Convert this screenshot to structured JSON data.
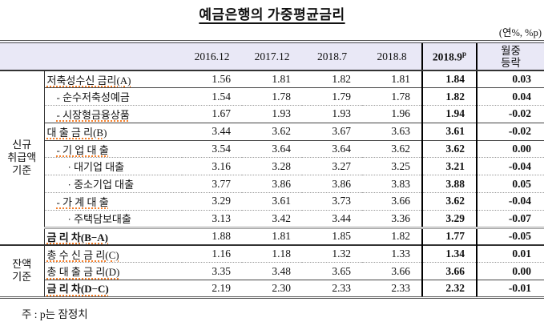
{
  "title": "예금은행의 가중평균금리",
  "unit_note": "(연%, %p)",
  "footnote": "주 : p는 잠정치",
  "table": {
    "columns": [
      "2016.12",
      "2017.12",
      "2018.7",
      "2018.8"
    ],
    "col_current": {
      "text": "2018.9",
      "sup": "p"
    },
    "col_change_lines": [
      "월중",
      "등락"
    ],
    "groups": [
      {
        "label_lines": [
          "신규",
          "취급액",
          "기준"
        ],
        "rows": [
          {
            "label": "저축성수신 금리(A)",
            "indent": 0,
            "bold": false,
            "squiggle": true,
            "sep": "none",
            "values": [
              "1.56",
              "1.81",
              "1.82",
              "1.81",
              "1.84",
              "0.03"
            ]
          },
          {
            "label": "- 순수저축성예금",
            "indent": 1,
            "bold": false,
            "squiggle": false,
            "sep": "solid",
            "values": [
              "1.54",
              "1.78",
              "1.79",
              "1.78",
              "1.82",
              "0.04"
            ]
          },
          {
            "label": "- 시장형금융상품",
            "indent": 1,
            "bold": false,
            "squiggle": true,
            "sep": "dotted",
            "values": [
              "1.67",
              "1.93",
              "1.93",
              "1.96",
              "1.94",
              "-0.02"
            ]
          },
          {
            "label": "대 출 금 리(B)",
            "indent": 0,
            "bold": false,
            "squiggle": true,
            "sep": "solid",
            "values": [
              "3.44",
              "3.62",
              "3.67",
              "3.63",
              "3.61",
              "-0.02"
            ]
          },
          {
            "label": "- 기 업 대 출",
            "indent": 1,
            "bold": false,
            "squiggle": true,
            "sep": "solid",
            "values": [
              "3.54",
              "3.64",
              "3.64",
              "3.62",
              "3.62",
              "0.00"
            ]
          },
          {
            "label": "· 대기업 대출",
            "indent": 2,
            "bold": false,
            "squiggle": false,
            "sep": "dotted",
            "values": [
              "3.16",
              "3.28",
              "3.27",
              "3.25",
              "3.21",
              "-0.04"
            ]
          },
          {
            "label": "· 중소기업 대출",
            "indent": 2,
            "bold": false,
            "squiggle": false,
            "sep": "dotted",
            "values": [
              "3.77",
              "3.86",
              "3.86",
              "3.83",
              "3.88",
              "0.05"
            ]
          },
          {
            "label": "- 가 계 대 출",
            "indent": 1,
            "bold": false,
            "squiggle": true,
            "sep": "dotted",
            "values": [
              "3.29",
              "3.61",
              "3.73",
              "3.66",
              "3.62",
              "-0.04"
            ]
          },
          {
            "label": "· 주택담보대출",
            "indent": 2,
            "bold": false,
            "squiggle": false,
            "sep": "dotted",
            "values": [
              "3.13",
              "3.42",
              "3.44",
              "3.36",
              "3.29",
              "-0.07"
            ]
          },
          {
            "label": "금 리 차(B−A)",
            "indent": 0,
            "bold": true,
            "squiggle": true,
            "sep": "double",
            "values": [
              "1.88",
              "1.81",
              "1.85",
              "1.82",
              "1.77",
              "-0.05"
            ]
          }
        ]
      },
      {
        "label_lines": [
          "잔액",
          "기준"
        ],
        "rows": [
          {
            "label": "총 수 신 금 리(C)",
            "indent": 0,
            "bold": false,
            "squiggle": true,
            "sep": "none",
            "values": [
              "1.16",
              "1.18",
              "1.32",
              "1.33",
              "1.34",
              "0.01"
            ]
          },
          {
            "label": "총 대 출 금 리(D)",
            "indent": 0,
            "bold": false,
            "squiggle": true,
            "sep": "dotted",
            "values": [
              "3.35",
              "3.48",
              "3.65",
              "3.66",
              "3.66",
              "0.00"
            ]
          },
          {
            "label": "금 리 차(D−C)",
            "indent": 0,
            "bold": true,
            "squiggle": true,
            "sep": "solid",
            "values": [
              "2.19",
              "2.30",
              "2.33",
              "2.33",
              "2.32",
              "-0.01"
            ]
          }
        ]
      }
    ]
  }
}
